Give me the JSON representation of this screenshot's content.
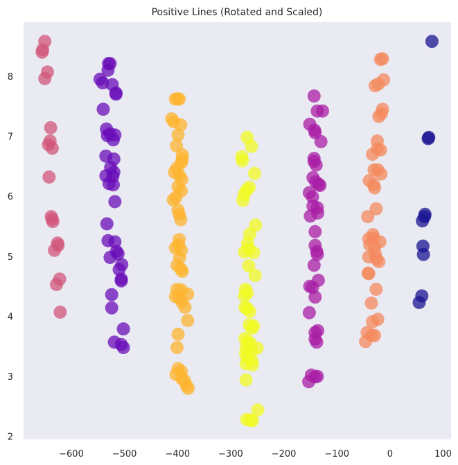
{
  "chart_data": {
    "type": "scatter",
    "title": "Positive Lines (Rotated and Scaled)",
    "xlabel": "",
    "ylabel": "",
    "xlim": [
      -690,
      115
    ],
    "ylim": [
      1.95,
      8.9
    ],
    "xticks": [
      -600,
      -500,
      -400,
      -300,
      -200,
      -100,
      0,
      100
    ],
    "yticks": [
      2,
      3,
      4,
      5,
      6,
      7,
      8
    ],
    "xtick_labels": [
      "−600",
      "−500",
      "−400",
      "−300",
      "−200",
      "−100",
      "0",
      "100"
    ],
    "ytick_labels": [
      "2",
      "3",
      "4",
      "5",
      "6",
      "7",
      "8"
    ],
    "grid": false,
    "background": "#eaeaf2",
    "colormap": "plasma",
    "series": [
      {
        "color": "#d2557a",
        "points": [
          [
            -650,
            8.58
          ],
          [
            -654,
            8.44
          ],
          [
            -655,
            8.4
          ],
          [
            -645,
            8.07
          ],
          [
            -650,
            7.96
          ],
          [
            -639,
            7.14
          ],
          [
            -640,
            6.92
          ],
          [
            -643,
            6.86
          ],
          [
            -636,
            6.8
          ],
          [
            -642,
            6.32
          ],
          [
            -638,
            5.66
          ],
          [
            -636,
            5.62
          ],
          [
            -635,
            5.58
          ],
          [
            -626,
            5.22
          ],
          [
            -625,
            5.18
          ],
          [
            -632,
            5.1
          ],
          [
            -622,
            4.62
          ],
          [
            -628,
            4.53
          ],
          [
            -621,
            4.07
          ]
        ]
      },
      {
        "color": "#6a0eb8",
        "points": [
          [
            -530,
            8.21
          ],
          [
            -527,
            8.21
          ],
          [
            -531,
            8.1
          ],
          [
            -546,
            7.95
          ],
          [
            -541,
            7.89
          ],
          [
            -523,
            7.86
          ],
          [
            -516,
            7.72
          ],
          [
            -516,
            7.7
          ],
          [
            -540,
            7.45
          ],
          [
            -534,
            7.12
          ],
          [
            -527,
            7.04
          ],
          [
            -532,
            7.01
          ],
          [
            -518,
            7.02
          ],
          [
            -521,
            6.94
          ],
          [
            -535,
            6.67
          ],
          [
            -520,
            6.62
          ],
          [
            -526,
            6.48
          ],
          [
            -520,
            6.4
          ],
          [
            -535,
            6.34
          ],
          [
            -522,
            6.33
          ],
          [
            -529,
            6.21
          ],
          [
            -521,
            6.19
          ],
          [
            -518,
            5.91
          ],
          [
            -533,
            5.54
          ],
          [
            -531,
            5.26
          ],
          [
            -518,
            5.24
          ],
          [
            -515,
            5.08
          ],
          [
            -512,
            5.04
          ],
          [
            -527,
            4.98
          ],
          [
            -505,
            4.86
          ],
          [
            -510,
            4.78
          ],
          [
            -506,
            4.62
          ],
          [
            -506,
            4.59
          ],
          [
            -524,
            4.36
          ],
          [
            -524,
            4.14
          ],
          [
            -502,
            3.79
          ],
          [
            -519,
            3.57
          ],
          [
            -506,
            3.53
          ],
          [
            -502,
            3.48
          ]
        ]
      },
      {
        "color": "#fdb42f",
        "points": [
          [
            -404,
            7.62
          ],
          [
            -400,
            7.62
          ],
          [
            -397,
            7.62
          ],
          [
            -411,
            7.29
          ],
          [
            -407,
            7.24
          ],
          [
            -394,
            7.19
          ],
          [
            -399,
            7.02
          ],
          [
            -402,
            6.84
          ],
          [
            -391,
            6.69
          ],
          [
            -391,
            6.62
          ],
          [
            -393,
            6.56
          ],
          [
            -401,
            6.47
          ],
          [
            -406,
            6.4
          ],
          [
            -397,
            6.35
          ],
          [
            -392,
            6.28
          ],
          [
            -399,
            6.16
          ],
          [
            -393,
            6.09
          ],
          [
            -403,
            5.98
          ],
          [
            -408,
            5.94
          ],
          [
            -399,
            5.77
          ],
          [
            -397,
            5.7
          ],
          [
            -394,
            5.61
          ],
          [
            -397,
            5.28
          ],
          [
            -398,
            5.19
          ],
          [
            -404,
            5.14
          ],
          [
            -393,
            5.1
          ],
          [
            -396,
            4.98
          ],
          [
            -401,
            4.85
          ],
          [
            -394,
            4.79
          ],
          [
            -391,
            4.75
          ],
          [
            -401,
            4.45
          ],
          [
            -393,
            4.44
          ],
          [
            -381,
            4.37
          ],
          [
            -404,
            4.33
          ],
          [
            -397,
            4.31
          ],
          [
            -392,
            4.24
          ],
          [
            -386,
            4.15
          ],
          [
            -381,
            3.93
          ],
          [
            -399,
            3.7
          ],
          [
            -401,
            3.48
          ],
          [
            -399,
            3.13
          ],
          [
            -393,
            3.08
          ],
          [
            -403,
            3.03
          ],
          [
            -392,
            2.96
          ],
          [
            -387,
            2.93
          ],
          [
            -383,
            2.84
          ],
          [
            -380,
            2.8
          ]
        ]
      },
      {
        "color": "#f0f921",
        "points": [
          [
            -269,
            6.98
          ],
          [
            -261,
            6.83
          ],
          [
            -279,
            6.66
          ],
          [
            -278,
            6.59
          ],
          [
            -255,
            6.38
          ],
          [
            -265,
            6.15
          ],
          [
            -270,
            6.1
          ],
          [
            -275,
            6.03
          ],
          [
            -277,
            5.93
          ],
          [
            -253,
            5.52
          ],
          [
            -264,
            5.37
          ],
          [
            -268,
            5.22
          ],
          [
            -266,
            5.12
          ],
          [
            -274,
            5.07
          ],
          [
            -257,
            5.06
          ],
          [
            -266,
            4.84
          ],
          [
            -254,
            4.68
          ],
          [
            -272,
            4.45
          ],
          [
            -269,
            4.39
          ],
          [
            -274,
            4.34
          ],
          [
            -273,
            4.15
          ],
          [
            -269,
            4.13
          ],
          [
            -264,
            4.08
          ],
          [
            -265,
            3.86
          ],
          [
            -257,
            3.84
          ],
          [
            -260,
            3.8
          ],
          [
            -273,
            3.63
          ],
          [
            -268,
            3.58
          ],
          [
            -263,
            3.55
          ],
          [
            -271,
            3.48
          ],
          [
            -250,
            3.47
          ],
          [
            -261,
            3.42
          ],
          [
            -272,
            3.38
          ],
          [
            -269,
            3.32
          ],
          [
            -260,
            3.26
          ],
          [
            -271,
            3.21
          ],
          [
            -259,
            3.19
          ],
          [
            -271,
            2.94
          ],
          [
            -249,
            2.44
          ],
          [
            -270,
            2.28
          ],
          [
            -263,
            2.27
          ],
          [
            -259,
            2.26
          ]
        ]
      },
      {
        "color": "#a81ea6",
        "points": [
          [
            -143,
            7.67
          ],
          [
            -137,
            7.42
          ],
          [
            -127,
            7.42
          ],
          [
            -151,
            7.2
          ],
          [
            -142,
            7.1
          ],
          [
            -141,
            7.06
          ],
          [
            -130,
            6.91
          ],
          [
            -143,
            6.63
          ],
          [
            -143,
            6.58
          ],
          [
            -139,
            6.52
          ],
          [
            -145,
            6.31
          ],
          [
            -140,
            6.24
          ],
          [
            -134,
            6.2
          ],
          [
            -132,
            6.18
          ],
          [
            -152,
            6.06
          ],
          [
            -146,
            5.99
          ],
          [
            -145,
            5.84
          ],
          [
            -137,
            5.81
          ],
          [
            -136,
            5.72
          ],
          [
            -150,
            5.67
          ],
          [
            -141,
            5.41
          ],
          [
            -141,
            5.18
          ],
          [
            -138,
            5.08
          ],
          [
            -137,
            5.03
          ],
          [
            -143,
            4.85
          ],
          [
            -135,
            4.6
          ],
          [
            -151,
            4.5
          ],
          [
            -146,
            4.48
          ],
          [
            -141,
            4.32
          ],
          [
            -152,
            4.06
          ],
          [
            -136,
            3.76
          ],
          [
            -141,
            3.73
          ],
          [
            -141,
            3.62
          ],
          [
            -138,
            3.57
          ],
          [
            -148,
            3.02
          ],
          [
            -141,
            2.99
          ],
          [
            -137,
            3.0
          ],
          [
            -153,
            2.91
          ]
        ]
      },
      {
        "color": "#f48a5e",
        "points": [
          [
            -18,
            8.28
          ],
          [
            -14,
            8.29
          ],
          [
            -12,
            7.94
          ],
          [
            -22,
            7.87
          ],
          [
            -28,
            7.84
          ],
          [
            -14,
            7.45
          ],
          [
            -16,
            7.38
          ],
          [
            -21,
            7.33
          ],
          [
            -24,
            6.92
          ],
          [
            -33,
            6.7
          ],
          [
            -24,
            6.79
          ],
          [
            -18,
            6.77
          ],
          [
            -30,
            6.44
          ],
          [
            -23,
            6.44
          ],
          [
            -17,
            6.37
          ],
          [
            -39,
            6.26
          ],
          [
            -31,
            6.19
          ],
          [
            -29,
            6.14
          ],
          [
            -26,
            5.79
          ],
          [
            -42,
            5.66
          ],
          [
            -32,
            5.36
          ],
          [
            -31,
            5.3
          ],
          [
            -19,
            5.24
          ],
          [
            -40,
            5.29
          ],
          [
            -38,
            5.19
          ],
          [
            -29,
            5.15
          ],
          [
            -28,
            5.04
          ],
          [
            -40,
            4.99
          ],
          [
            -25,
            4.95
          ],
          [
            -21,
            4.91
          ],
          [
            -41,
            4.72
          ],
          [
            -40,
            4.71
          ],
          [
            -26,
            4.45
          ],
          [
            -35,
            4.22
          ],
          [
            -23,
            3.95
          ],
          [
            -33,
            3.91
          ],
          [
            -43,
            3.73
          ],
          [
            -34,
            3.68
          ],
          [
            -29,
            3.68
          ],
          [
            -46,
            3.58
          ]
        ]
      },
      {
        "color": "#1a1491",
        "points": [
          [
            79,
            8.58
          ],
          [
            73,
            6.98
          ],
          [
            72,
            6.96
          ],
          [
            66,
            5.7
          ],
          [
            65,
            5.66
          ],
          [
            61,
            5.59
          ],
          [
            62,
            5.17
          ],
          [
            63,
            5.03
          ],
          [
            60,
            4.34
          ],
          [
            55,
            4.23
          ]
        ]
      }
    ]
  }
}
